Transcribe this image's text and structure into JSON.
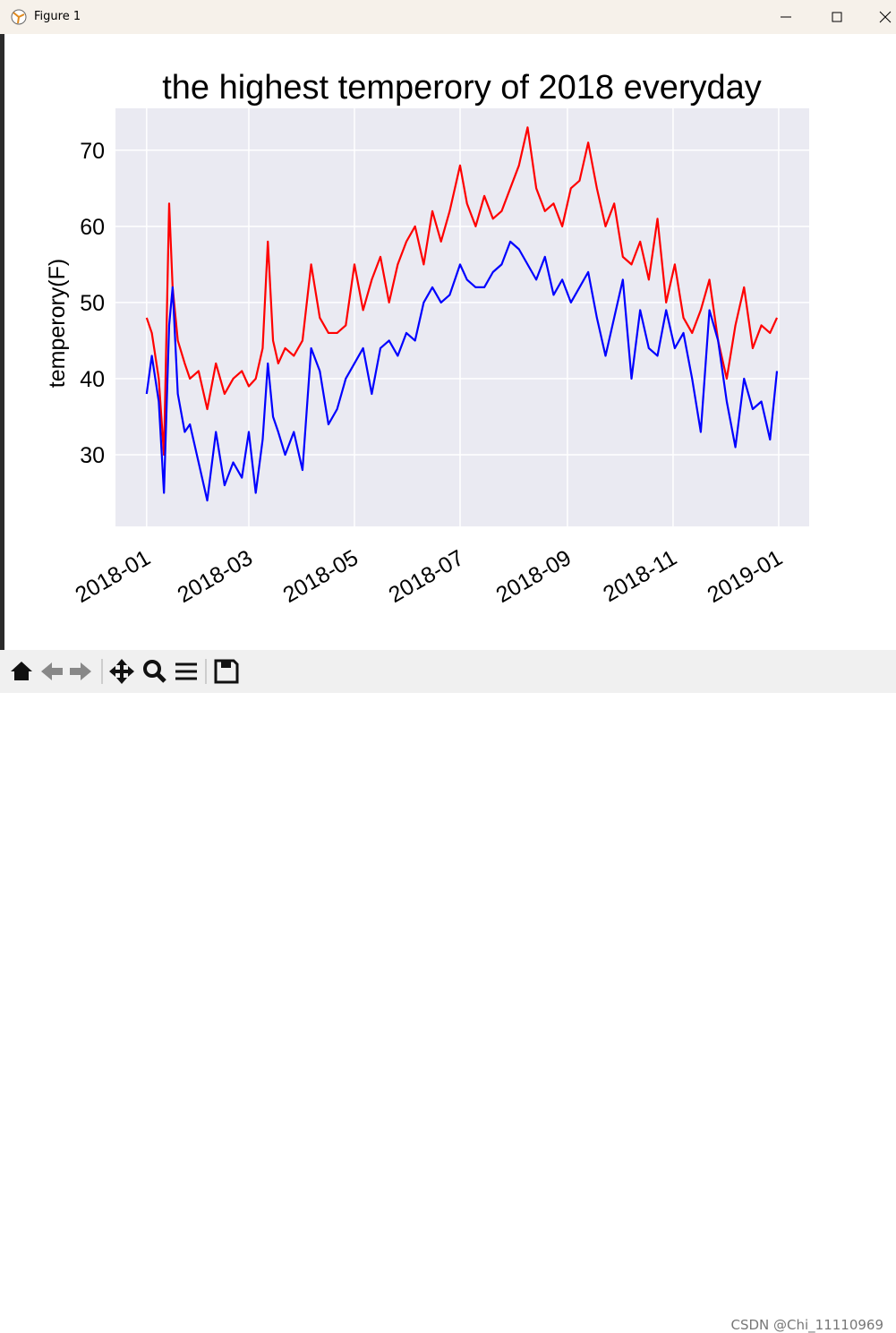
{
  "window_title": "Figure 1",
  "watermark": "CSDN @Chi_11110969",
  "chart_data": {
    "type": "line",
    "title": "the highest temperory of 2018 everyday",
    "y_label": "temperory(F)",
    "x": [
      0,
      3,
      7,
      10,
      13,
      15,
      18,
      22,
      25,
      30,
      35,
      40,
      45,
      50,
      55,
      59,
      63,
      67,
      70,
      73,
      76,
      80,
      85,
      90,
      95,
      100,
      105,
      110,
      115,
      120,
      125,
      130,
      135,
      140,
      145,
      150,
      155,
      160,
      165,
      170,
      175,
      181,
      185,
      190,
      195,
      200,
      205,
      210,
      215,
      220,
      225,
      230,
      235,
      240,
      245,
      250,
      255,
      260,
      265,
      270,
      275,
      280,
      285,
      290,
      295,
      300,
      305,
      310,
      315,
      320,
      325,
      330,
      335,
      340,
      345,
      350,
      355,
      360,
      364
    ],
    "series": [
      {
        "color": "red",
        "values": [
          48,
          46,
          40,
          30,
          63,
          52,
          45,
          42,
          40,
          41,
          36,
          42,
          38,
          40,
          41,
          39,
          40,
          44,
          58,
          45,
          42,
          44,
          43,
          45,
          55,
          48,
          46,
          46,
          47,
          55,
          49,
          53,
          56,
          50,
          55,
          58,
          60,
          55,
          62,
          58,
          62,
          68,
          63,
          60,
          64,
          61,
          62,
          65,
          68,
          73,
          65,
          62,
          63,
          60,
          65,
          66,
          71,
          65,
          60,
          63,
          56,
          55,
          58,
          53,
          61,
          50,
          55,
          48,
          46,
          49,
          53,
          45,
          40,
          47,
          52,
          44,
          47,
          46,
          48
        ]
      },
      {
        "color": "blue",
        "values": [
          38,
          43,
          37,
          25,
          47,
          52,
          38,
          33,
          34,
          29,
          24,
          33,
          26,
          29,
          27,
          33,
          25,
          32,
          42,
          35,
          33,
          30,
          33,
          28,
          44,
          41,
          34,
          36,
          40,
          42,
          44,
          38,
          44,
          45,
          43,
          46,
          45,
          50,
          52,
          50,
          51,
          55,
          53,
          52,
          52,
          54,
          55,
          58,
          57,
          55,
          53,
          56,
          51,
          53,
          50,
          52,
          54,
          48,
          43,
          48,
          53,
          40,
          49,
          44,
          43,
          49,
          44,
          46,
          40,
          33,
          49,
          45,
          37,
          31,
          40,
          36,
          37,
          32,
          41
        ]
      }
    ],
    "xlim": [
      -18,
      382.6
    ],
    "xticks": [
      {
        "value": 0,
        "label": "2018-01"
      },
      {
        "value": 59,
        "label": "2018-03"
      },
      {
        "value": 120,
        "label": "2018-05"
      },
      {
        "value": 181,
        "label": "2018-07"
      },
      {
        "value": 243,
        "label": "2018-09"
      },
      {
        "value": 304,
        "label": "2018-11"
      },
      {
        "value": 365,
        "label": "2019-01"
      }
    ],
    "ylim": [
      20.6,
      75.5
    ],
    "yticks": [
      30,
      40,
      50,
      60,
      70
    ],
    "grid": true
  }
}
